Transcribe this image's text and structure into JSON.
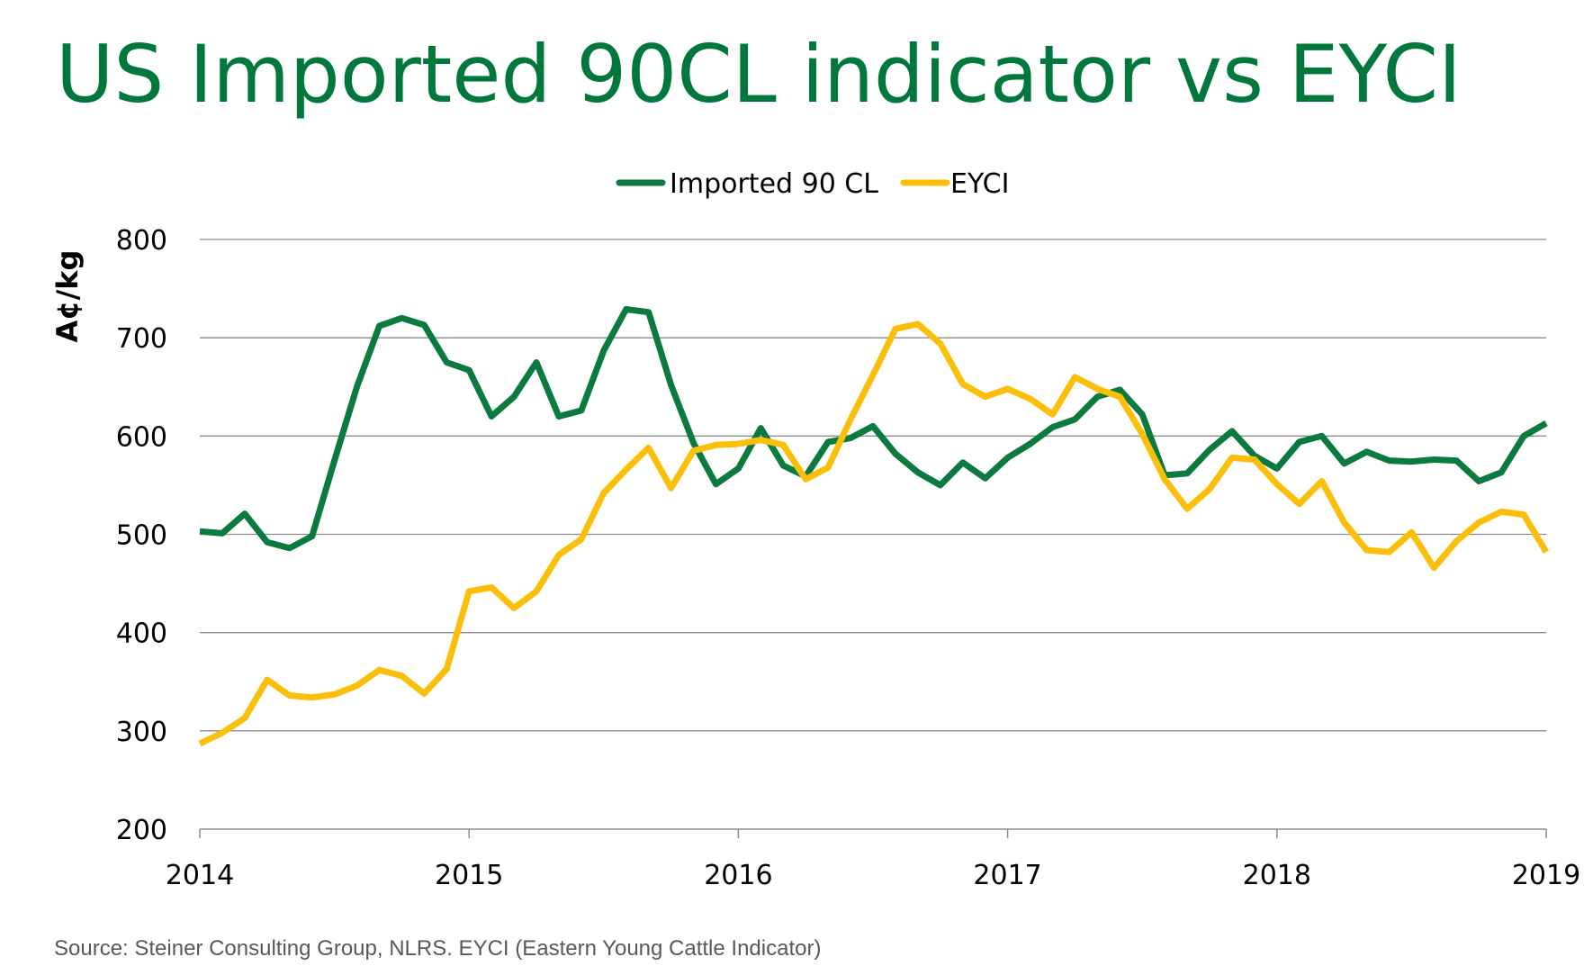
{
  "slide": {
    "title": "US Imported 90CL indicator vs EYCI",
    "source_note": "Source: Steiner Consulting Group, NLRS. EYCI (Eastern Young Cattle Indicator)"
  },
  "colors": {
    "title": "#00783c",
    "imported_90cl": "#0a7a3e",
    "eyci": "#fbbf0a",
    "gridline": "#8c8c8c",
    "axis": "#8c8c8c"
  },
  "chart_data": {
    "type": "line",
    "ylabel": "A¢/kg",
    "xlabel": "",
    "ylim": [
      200,
      800
    ],
    "yticks": [
      200,
      300,
      400,
      500,
      600,
      700,
      800
    ],
    "xlim": [
      2014,
      2019
    ],
    "xticks": [
      2014,
      2015,
      2016,
      2017,
      2018,
      2019
    ],
    "legend_position": "top-center",
    "grid": true,
    "series": [
      {
        "name": "Imported 90 CL",
        "color": "#0a7a3e",
        "x": [
          2014.0,
          2014.0833,
          2014.1667,
          2014.25,
          2014.3333,
          2014.4167,
          2014.5,
          2014.5833,
          2014.6667,
          2014.75,
          2014.8333,
          2014.9167,
          2015.0,
          2015.0833,
          2015.1667,
          2015.25,
          2015.3333,
          2015.4167,
          2015.5,
          2015.5833,
          2015.6667,
          2015.75,
          2015.8333,
          2015.9167,
          2016.0,
          2016.0833,
          2016.1667,
          2016.25,
          2016.3333,
          2016.4167,
          2016.5,
          2016.5833,
          2016.6667,
          2016.75,
          2016.8333,
          2016.9167,
          2017.0,
          2017.0833,
          2017.1667,
          2017.25,
          2017.3333,
          2017.4167,
          2017.5,
          2017.5833,
          2017.6667,
          2017.75,
          2017.8333,
          2017.9167,
          2018.0,
          2018.0833,
          2018.1667,
          2018.25,
          2018.3333,
          2018.4167,
          2018.5,
          2018.5833,
          2018.6667,
          2018.75,
          2018.8333,
          2018.9167,
          2019.0
        ],
        "values": [
          503,
          501,
          521,
          492,
          486,
          498,
          575,
          650,
          712,
          720,
          713,
          675,
          667,
          620,
          640,
          675,
          620,
          626,
          687,
          729,
          726,
          652,
          593,
          551,
          567,
          608,
          570,
          559,
          594,
          598,
          610,
          582,
          563,
          550,
          573,
          557,
          578,
          592,
          609,
          617,
          640,
          647,
          622,
          560,
          562,
          586,
          605,
          580,
          567,
          594,
          600,
          572,
          584,
          575,
          574,
          576,
          575,
          554,
          563,
          600,
          613
        ]
      },
      {
        "name": "EYCI",
        "color": "#fbbf0a",
        "x": [
          2014.0,
          2014.0833,
          2014.1667,
          2014.25,
          2014.3333,
          2014.4167,
          2014.5,
          2014.5833,
          2014.6667,
          2014.75,
          2014.8333,
          2014.9167,
          2015.0,
          2015.0833,
          2015.1667,
          2015.25,
          2015.3333,
          2015.4167,
          2015.5,
          2015.5833,
          2015.6667,
          2015.75,
          2015.8333,
          2015.9167,
          2016.0,
          2016.0833,
          2016.1667,
          2016.25,
          2016.3333,
          2016.4167,
          2016.5,
          2016.5833,
          2016.6667,
          2016.75,
          2016.8333,
          2016.9167,
          2017.0,
          2017.0833,
          2017.1667,
          2017.25,
          2017.3333,
          2017.4167,
          2017.5,
          2017.5833,
          2017.6667,
          2017.75,
          2017.8333,
          2017.9167,
          2018.0,
          2018.0833,
          2018.1667,
          2018.25,
          2018.3333,
          2018.4167,
          2018.5,
          2018.5833,
          2018.6667,
          2018.75,
          2018.8333,
          2018.9167,
          2019.0
        ],
        "values": [
          287,
          298,
          313,
          352,
          336,
          334,
          337,
          346,
          362,
          356,
          338,
          363,
          442,
          446,
          425,
          442,
          479,
          495,
          542,
          566,
          588,
          547,
          585,
          591,
          592,
          596,
          591,
          556,
          568,
          617,
          662,
          709,
          714,
          694,
          653,
          640,
          648,
          638,
          622,
          660,
          648,
          640,
          602,
          556,
          526,
          546,
          578,
          576,
          551,
          531,
          554,
          512,
          484,
          482,
          502,
          466,
          493,
          512,
          523,
          520,
          482
        ]
      }
    ]
  }
}
